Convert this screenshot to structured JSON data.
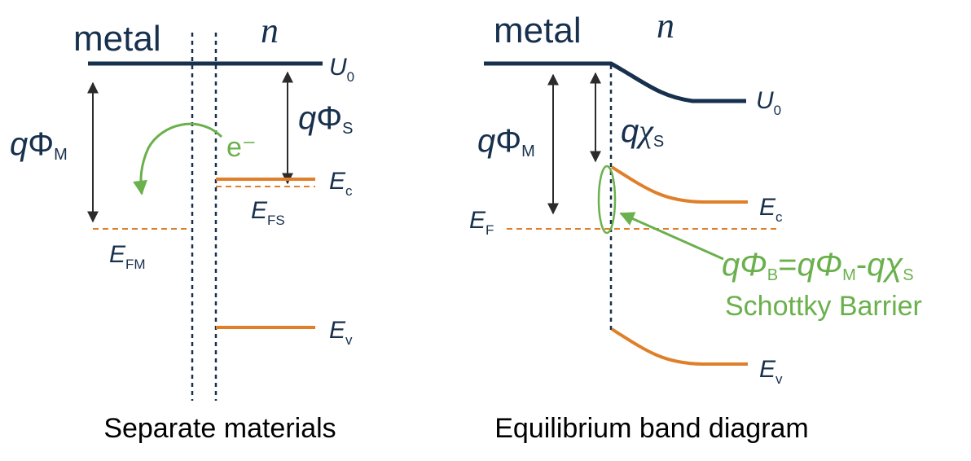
{
  "colors": {
    "navy": "#17304d",
    "orange": "#e07f2a",
    "green": "#6ab04c",
    "text": "#000000",
    "arrow": "#2b2b2b"
  },
  "left": {
    "metal_label": "metal",
    "n_label": "n",
    "U0": {
      "main": "U",
      "sub": "0"
    },
    "qPhiM": {
      "q": "q",
      "phi": "Φ",
      "sub": "M"
    },
    "qPhiS": {
      "q": "q",
      "phi": "Φ",
      "sub": "S"
    },
    "electron": "e⁻",
    "Ec": {
      "main": "E",
      "sub": "c"
    },
    "EFS": {
      "main": "E",
      "sub": "FS"
    },
    "EFM": {
      "main": "E",
      "sub": "FM"
    },
    "Ev": {
      "main": "E",
      "sub": "v"
    },
    "caption": "Separate materials"
  },
  "right": {
    "metal_label": "metal",
    "n_label": "n",
    "U0": {
      "main": "U",
      "sub": "0"
    },
    "qPhiM": {
      "q": "q",
      "phi": "Φ",
      "sub": "M"
    },
    "qChiS": {
      "q": "q",
      "chi": "χ",
      "sub": "S"
    },
    "EF": {
      "main": "E",
      "sub": "F"
    },
    "Ec": {
      "main": "E",
      "sub": "c"
    },
    "Ev": {
      "main": "E",
      "sub": "v"
    },
    "barrier_formula": {
      "a": "qΦ",
      "a_sub": "B",
      "eq": "=",
      "b": "qΦ",
      "b_sub": "M",
      "minus": "-",
      "c": "qχ",
      "c_sub": "S"
    },
    "barrier_name": "Schottky Barrier",
    "caption": "Equilibrium band diagram"
  }
}
